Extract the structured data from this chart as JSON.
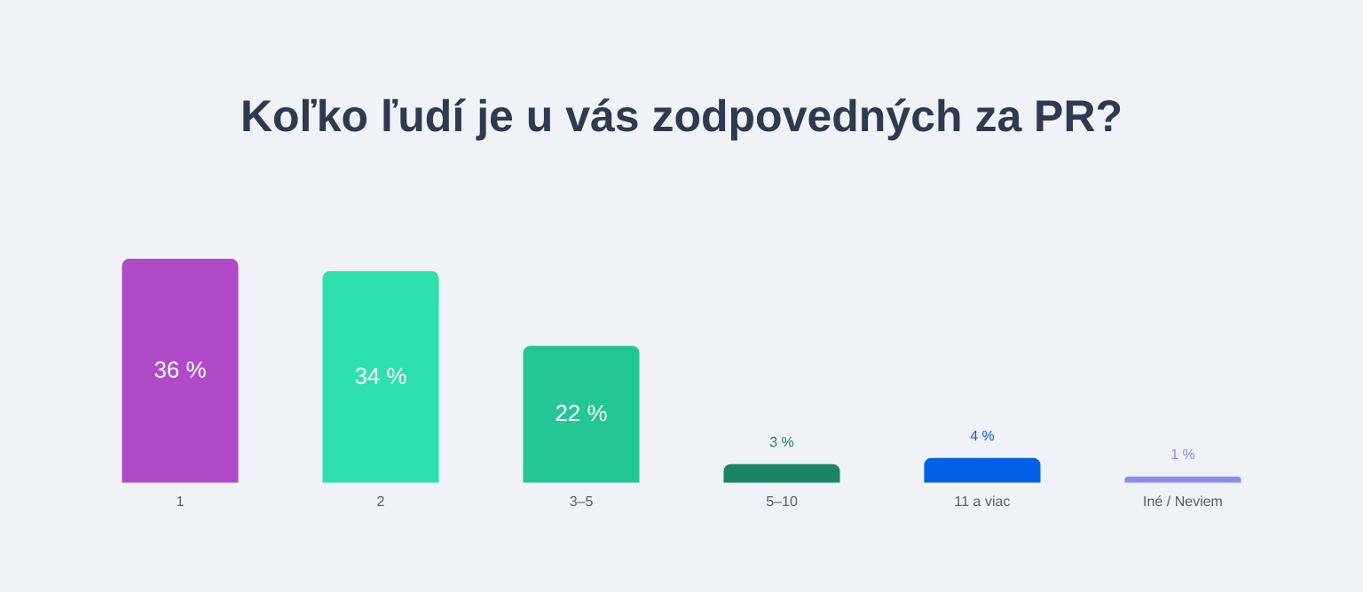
{
  "chart_data": {
    "type": "bar",
    "title": "Koľko ľudí je u vás zodpovedných za PR?",
    "categories": [
      "1",
      "2",
      "3–5",
      "5–10",
      "11 a viac",
      "Iné / Neviem"
    ],
    "values": [
      36,
      34,
      22,
      3,
      4,
      1
    ],
    "colors": [
      "#b04ac8",
      "#2ee0ab",
      "#22c795",
      "#1a8466",
      "#0060e6",
      "#8a8cfa"
    ],
    "value_labels": [
      "36 %",
      "34 %",
      "22 %",
      "3 %",
      "4 %",
      "1 %"
    ],
    "grid": false,
    "legend": false
  }
}
